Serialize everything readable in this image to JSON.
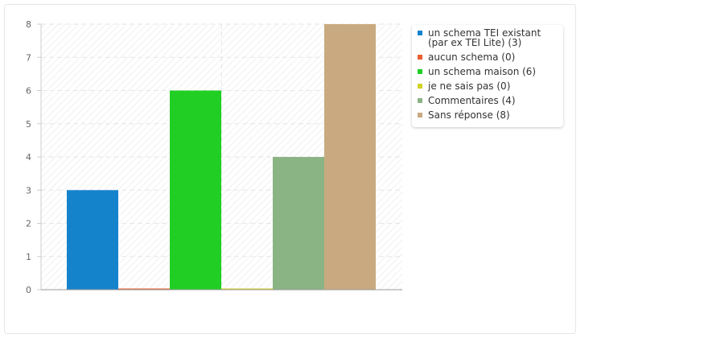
{
  "chart_data": {
    "type": "bar",
    "title": "",
    "xlabel": "",
    "ylabel": "",
    "ylim": [
      0,
      8
    ],
    "yticks": [
      0,
      1,
      2,
      3,
      4,
      5,
      6,
      7,
      8
    ],
    "grid": true,
    "legend_position": "right",
    "series": [
      {
        "name": "un schema TEI existant (par ex TEI Lite) (3)",
        "value": 3,
        "color": "#1583cc"
      },
      {
        "name": "aucun schema (0)",
        "value": 0,
        "color": "#e8622f"
      },
      {
        "name": "un schema maison (6)",
        "value": 6,
        "color": "#21cf24"
      },
      {
        "name": "je ne sais pas (0)",
        "value": 0,
        "color": "#d2d22a"
      },
      {
        "name": "Commentaires (4)",
        "value": 4,
        "color": "#8bb484"
      },
      {
        "name": "Sans réponse (8)",
        "value": 8,
        "color": "#c9aa80"
      }
    ]
  }
}
